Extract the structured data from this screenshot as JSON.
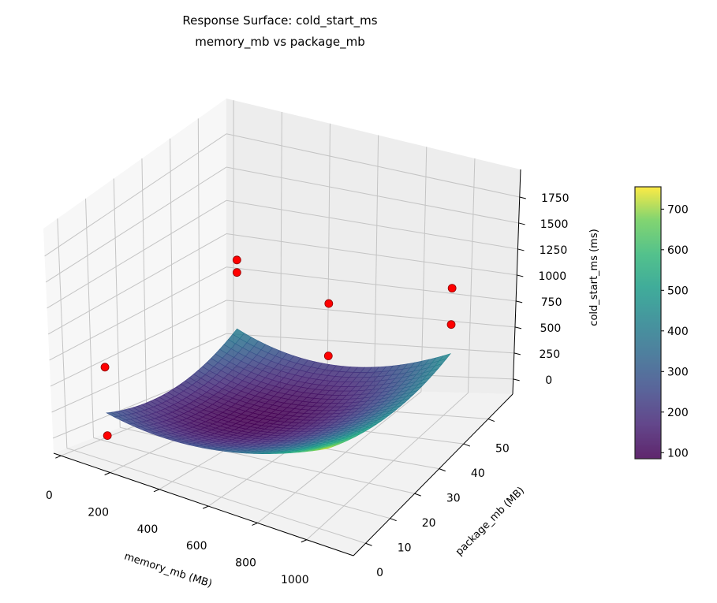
{
  "chart_data": {
    "type": "surface3d",
    "title": "Response Surface: cold_start_ms",
    "subtitle": "memory_mb vs package_mb",
    "xlabel": "memory_mb (MB)",
    "ylabel": "package_mb (MB)",
    "zlabel": "cold_start_ms (ms)",
    "xlim": [
      -30,
      1190
    ],
    "ylim": [
      -5,
      60
    ],
    "zlim": [
      -145,
      2015
    ],
    "xticks": [
      0,
      200,
      400,
      600,
      800,
      1000
    ],
    "yticks": [
      0,
      10,
      20,
      30,
      40,
      50
    ],
    "zticks": [
      0,
      250,
      500,
      750,
      1000,
      1250,
      1500,
      1750
    ],
    "grid": true,
    "surface": {
      "x_range": [
        128,
        1024
      ],
      "y_range": [
        1,
        50
      ],
      "model": "fitted quadratic",
      "colormap": "viridis",
      "alpha": 0.85
    },
    "scatter": {
      "color": "#ff0000",
      "edgecolor": "#8b0000",
      "points": [
        {
          "x": 128,
          "y": 50,
          "z": 970
        },
        {
          "x": 128,
          "y": 50,
          "z": 870
        },
        {
          "x": 512,
          "y": 50,
          "z": 740
        },
        {
          "x": 512,
          "y": 50,
          "z": 290
        },
        {
          "x": 1024,
          "y": 50,
          "z": 1075
        },
        {
          "x": 1024,
          "y": 50,
          "z": 728
        },
        {
          "x": 128,
          "y": 1,
          "z": 740
        },
        {
          "x": 128,
          "y": 1,
          "z": 82
        }
      ]
    },
    "colorbar": {
      "range": [
        85,
        755
      ],
      "ticks": [
        100,
        200,
        300,
        400,
        500,
        600,
        700
      ]
    }
  }
}
